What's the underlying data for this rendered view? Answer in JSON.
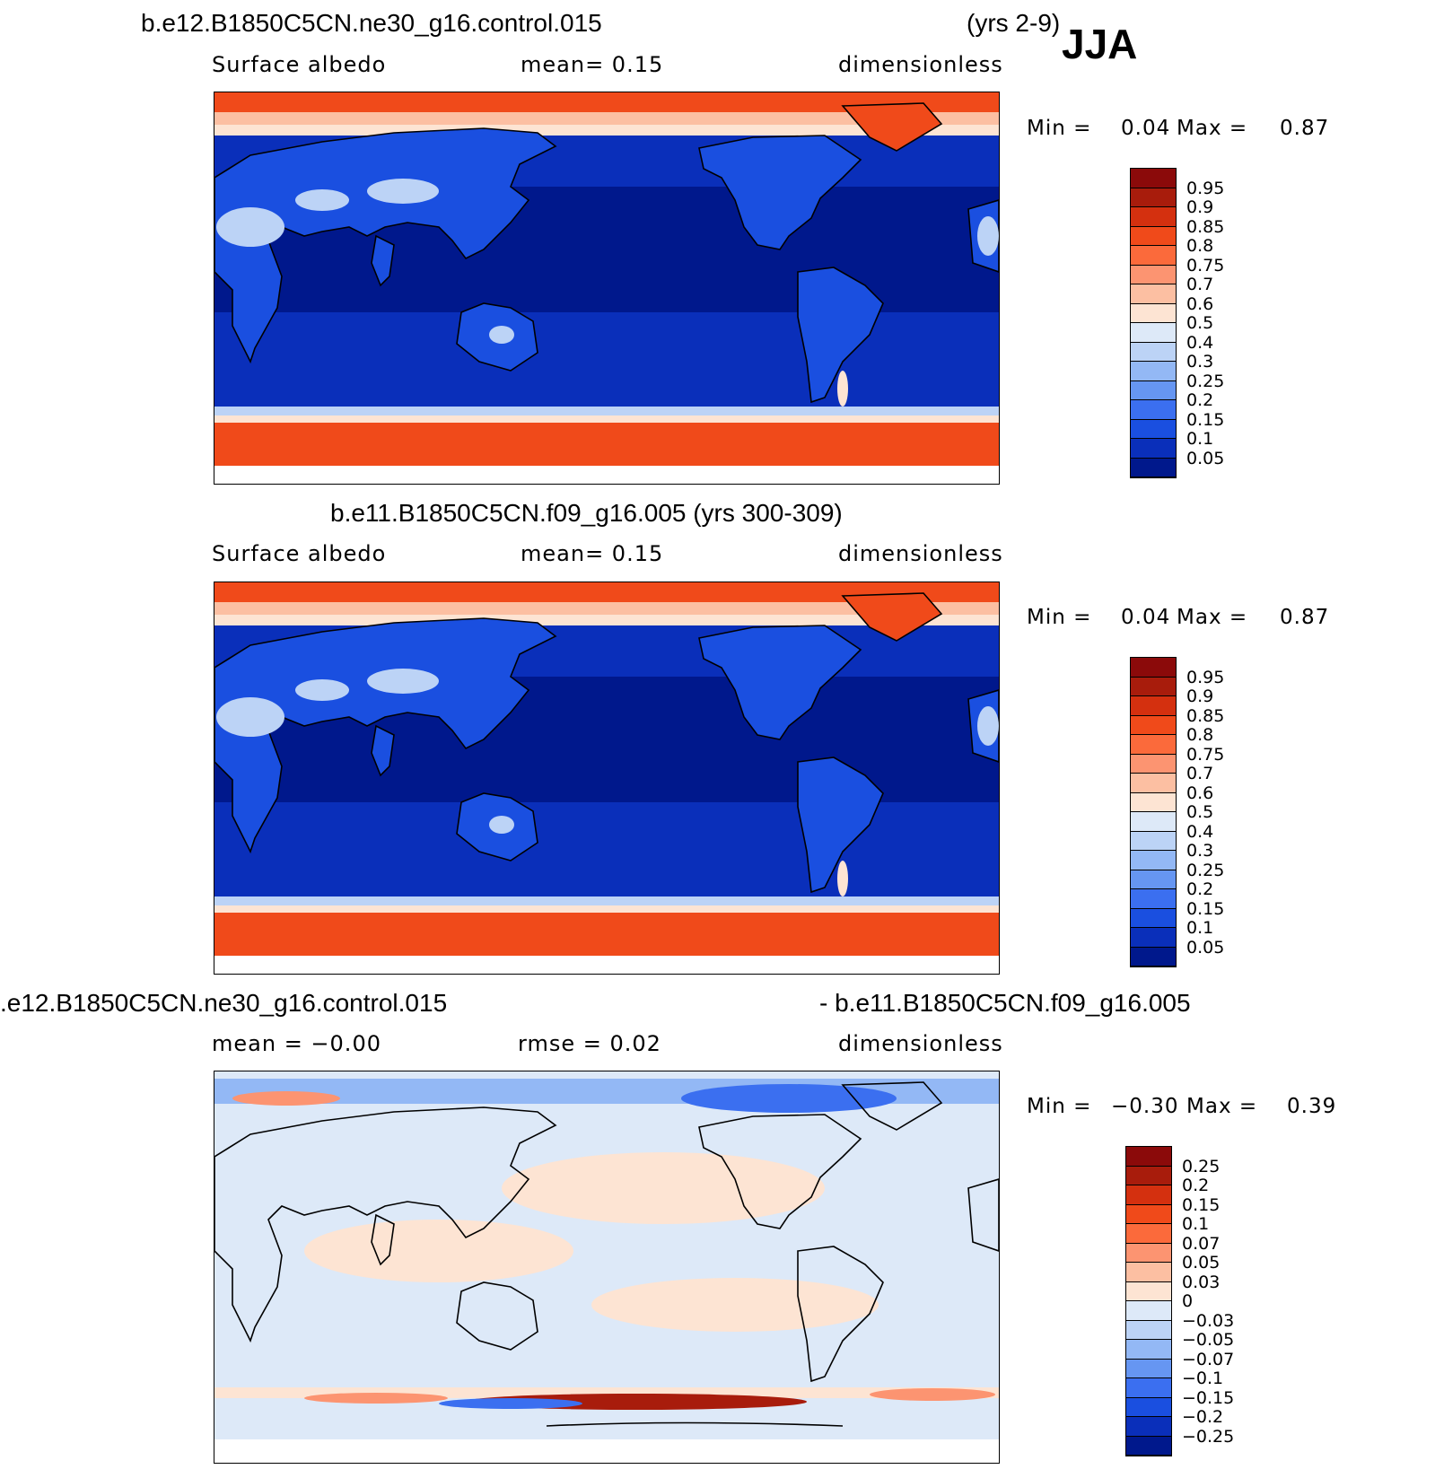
{
  "season": "JJA",
  "panels": [
    {
      "title_left": "b.e12.B1850C5CN.ne30_g16.control.015",
      "title_right": "(yrs 2-9)",
      "sub_left": "Surface albedo",
      "sub_mid": "mean=    0.15",
      "sub_right": "dimensionless",
      "min_label": "Min  =",
      "min_value": "0.04",
      "max_label": "Max  =",
      "max_value": "0.87",
      "kind": "field",
      "colorbar_labels": [
        "0.95",
        "0.9",
        "0.85",
        "0.8",
        "0.75",
        "0.7",
        "0.6",
        "0.5",
        "0.4",
        "0.3",
        "0.25",
        "0.2",
        "0.15",
        "0.1",
        "0.05"
      ]
    },
    {
      "title_left": "b.e11.B1850C5CN.f09_g16.005 (yrs 300-309)",
      "title_right": "",
      "sub_left": "Surface albedo",
      "sub_mid": "mean=    0.15",
      "sub_right": "dimensionless",
      "min_label": "Min  =",
      "min_value": "0.04",
      "max_label": "Max  =",
      "max_value": "0.87",
      "kind": "field",
      "colorbar_labels": [
        "0.95",
        "0.9",
        "0.85",
        "0.8",
        "0.75",
        "0.7",
        "0.6",
        "0.5",
        "0.4",
        "0.3",
        "0.25",
        "0.2",
        "0.15",
        "0.1",
        "0.05"
      ]
    },
    {
      "title_left": ".e12.B1850C5CN.ne30_g16.control.015",
      "title_right": "- b.e11.B1850C5CN.f09_g16.005",
      "sub_left": "mean  =   −0.00",
      "sub_mid": "rmse  =    0.02",
      "sub_right": "dimensionless",
      "min_label": "Min  =",
      "min_value": "−0.30",
      "max_label": "Max  =",
      "max_value": "0.39",
      "kind": "diff",
      "colorbar_labels": [
        "0.25",
        "0.2",
        "0.15",
        "0.1",
        "0.07",
        "0.05",
        "0.03",
        "0",
        "−0.03",
        "−0.05",
        "−0.07",
        "−0.1",
        "−0.15",
        "−0.2",
        "−0.25"
      ]
    }
  ],
  "colors": {
    "scale_16": [
      "#8b0a0a",
      "#a81c0c",
      "#d4300f",
      "#f04a1a",
      "#fb6a3b",
      "#fc9471",
      "#fcbfa2",
      "#fde4d3",
      "#dde9f8",
      "#bcd3f6",
      "#93b8f5",
      "#6696f2",
      "#3b6ff0",
      "#1a4fe0",
      "#0a2fba",
      "#00188c"
    ],
    "ocean_deep": "#00188c",
    "ocean_mid": "#0a2fba",
    "land": "#1a4fe0",
    "desert": "#bcd3f6",
    "ice_edge": "#fde4d3",
    "ice": "#f04a1a",
    "greenland": "#f04a1a",
    "diff_neutral": "#dde9f8",
    "diff_pos_light": "#fde4d3",
    "diff_pos": "#fc9471",
    "diff_pos_strong": "#a81c0c",
    "diff_neg": "#3b6ff0",
    "diff_neg_light": "#93b8f5"
  }
}
